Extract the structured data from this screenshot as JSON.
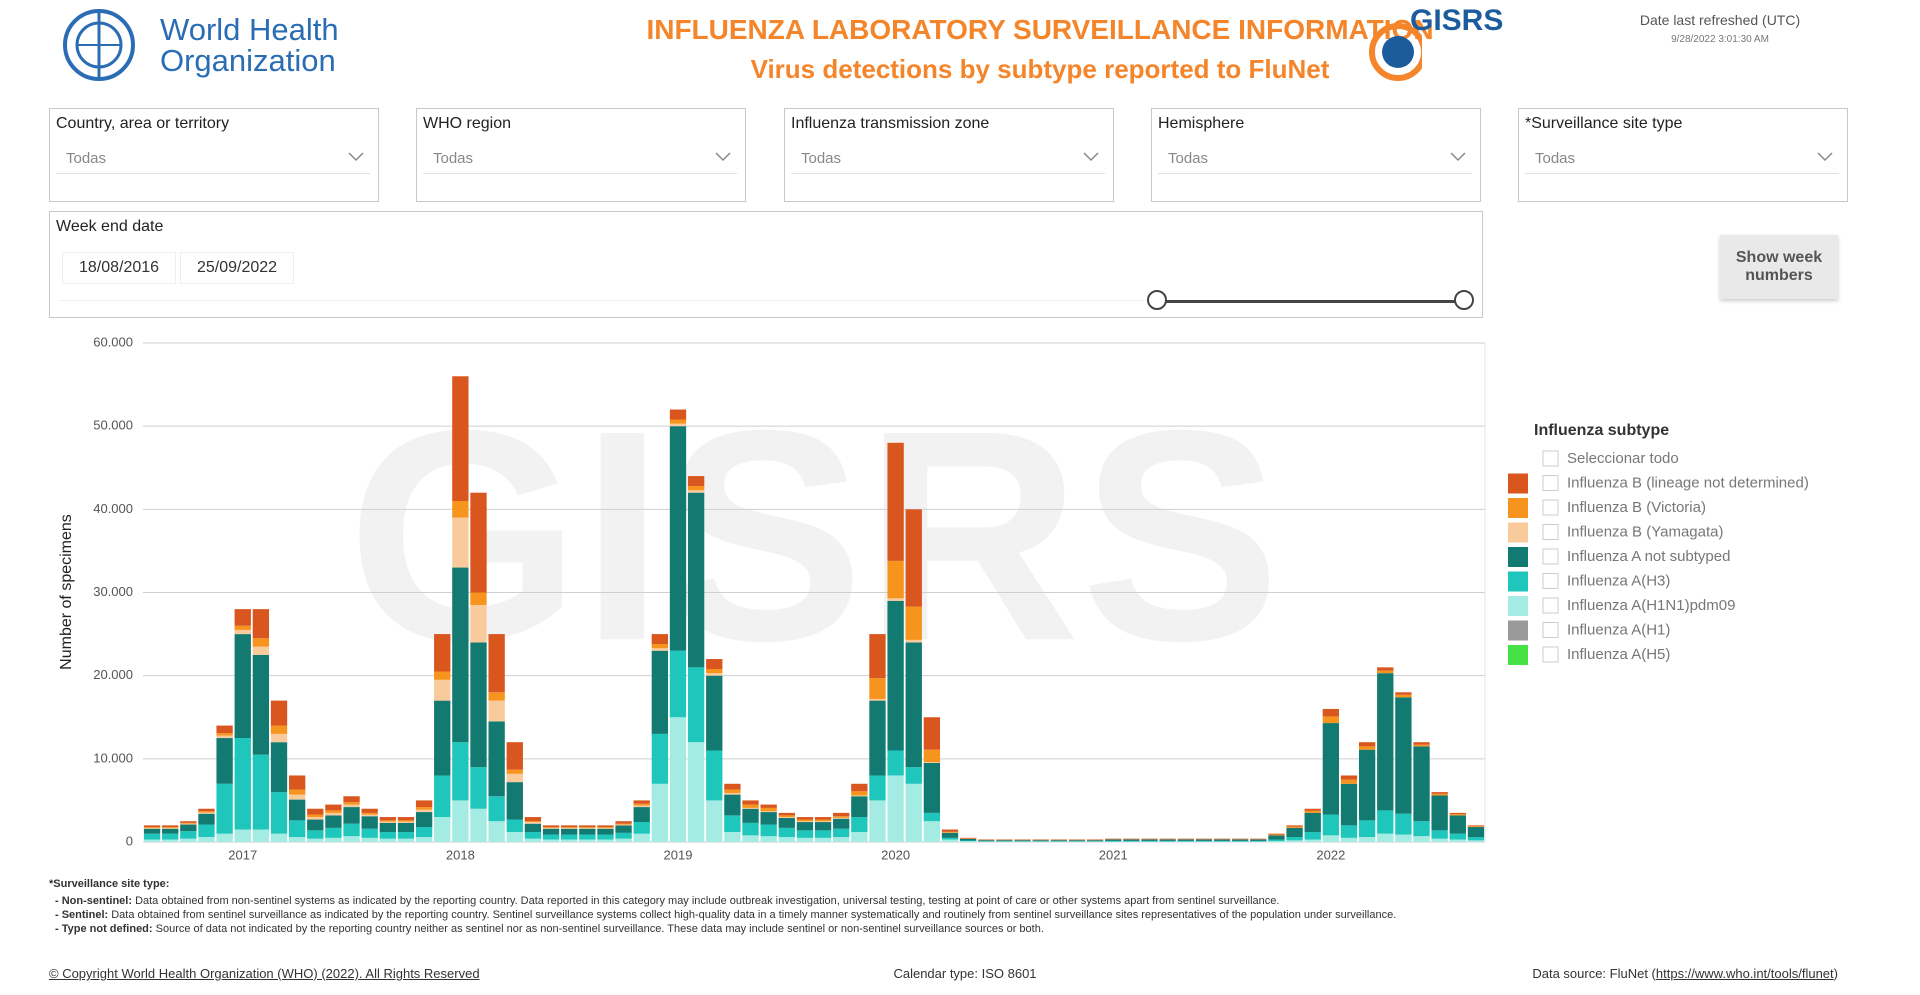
{
  "header": {
    "org_line1": "World Health",
    "org_line2": "Organization",
    "title": "INFLUENZA LABORATORY SURVEILLANCE INFORMATION",
    "subtitle": "Virus detections by subtype reported to FluNet",
    "gisrs": "GISRS",
    "refreshed_label": "Date last refreshed (UTC)",
    "refreshed_value": "9/28/2022 3:01:30 AM"
  },
  "filters": [
    {
      "label": "Country, area or territory",
      "value": "Todas"
    },
    {
      "label": "WHO region",
      "value": "Todas"
    },
    {
      "label": "Influenza transmission zone",
      "value": "Todas"
    },
    {
      "label": "Hemisphere",
      "value": "Todas"
    },
    {
      "label": "*Surveillance site type",
      "value": "Todas"
    }
  ],
  "week_filter": {
    "label": "Week end date",
    "start": "18/08/2016",
    "end": "25/09/2022"
  },
  "button": "Show week numbers",
  "chart_data": {
    "type": "stacked_bar",
    "watermark": "GISRS",
    "ylabel": "Number of specimens",
    "legend_title": "Influenza subtype",
    "select_all": "Seleccionar todo",
    "categories": [
      null,
      null,
      null,
      null,
      null,
      "2017",
      null,
      null,
      null,
      null,
      null,
      null,
      null,
      null,
      null,
      null,
      null,
      "2018",
      null,
      null,
      null,
      null,
      null,
      null,
      null,
      null,
      null,
      null,
      null,
      "2019",
      null,
      null,
      null,
      null,
      null,
      null,
      null,
      null,
      null,
      null,
      null,
      "2020",
      null,
      null,
      null,
      null,
      null,
      null,
      null,
      null,
      null,
      null,
      null,
      "2021",
      null,
      null,
      null,
      null,
      null,
      null,
      null,
      null,
      null,
      null,
      null,
      "2022",
      null,
      null,
      null,
      null,
      null,
      null,
      null,
      null
    ],
    "ylim": [
      0,
      60000
    ],
    "yticks": [
      0,
      {
        "value": 10000,
        "label": "10.000"
      },
      {
        "value": 20000,
        "label": "20.000"
      },
      {
        "value": 30000,
        "label": "30.000"
      },
      {
        "value": 40000,
        "label": "40.000"
      },
      {
        "value": 50000,
        "label": "50.000"
      },
      {
        "value": 60000,
        "label": "60.000"
      }
    ],
    "grid": true,
    "series": [
      {
        "name": "Influenza A(H1N1)pdm09",
        "color": "#a3ebe3",
        "values": [
          300,
          300,
          400,
          600,
          1000,
          1500,
          1500,
          1000,
          600,
          400,
          500,
          700,
          500,
          400,
          400,
          600,
          3000,
          5000,
          4000,
          2500,
          1200,
          400,
          300,
          300,
          300,
          300,
          400,
          1000,
          7000,
          15000,
          12000,
          5000,
          1200,
          800,
          700,
          600,
          500,
          500,
          600,
          1200,
          5000,
          8000,
          7000,
          2500,
          300,
          100,
          50,
          50,
          50,
          50,
          50,
          50,
          50,
          60,
          60,
          60,
          60,
          60,
          60,
          60,
          60,
          60,
          100,
          200,
          300,
          800,
          500,
          600,
          1000,
          900,
          700,
          400,
          300,
          200
        ]
      },
      {
        "name": "Influenza A(H3)",
        "color": "#1fc6bb",
        "values": [
          700,
          700,
          900,
          1500,
          6000,
          11000,
          9000,
          5000,
          2000,
          1000,
          1200,
          1500,
          1100,
          800,
          800,
          1200,
          5000,
          7000,
          5000,
          3000,
          1500,
          800,
          600,
          600,
          600,
          600,
          700,
          1400,
          6000,
          8000,
          9000,
          6000,
          2000,
          1500,
          1400,
          1100,
          900,
          900,
          1000,
          1800,
          3000,
          3000,
          2000,
          1000,
          200,
          80,
          50,
          50,
          50,
          50,
          50,
          50,
          50,
          70,
          70,
          70,
          70,
          70,
          70,
          70,
          70,
          70,
          200,
          400,
          900,
          2500,
          1500,
          2000,
          2800,
          2500,
          1800,
          1000,
          700,
          400
        ]
      },
      {
        "name": "Influenza A not subtyped",
        "color": "#137a72",
        "values": [
          600,
          600,
          800,
          1300,
          5500,
          12500,
          12000,
          6000,
          2500,
          1300,
          1500,
          2000,
          1500,
          1100,
          1100,
          1800,
          9000,
          21000,
          15000,
          9000,
          4500,
          1000,
          700,
          700,
          700,
          700,
          900,
          1800,
          10000,
          27000,
          21000,
          9000,
          2500,
          1700,
          1500,
          1200,
          1000,
          1000,
          1200,
          2500,
          9000,
          18000,
          15000,
          6000,
          600,
          200,
          120,
          120,
          120,
          120,
          120,
          120,
          120,
          170,
          170,
          170,
          170,
          170,
          170,
          170,
          170,
          170,
          500,
          1100,
          2300,
          11000,
          5000,
          8500,
          16500,
          14000,
          9000,
          4200,
          2200,
          1200
        ]
      },
      {
        "name": "Influenza B (Yamagata)",
        "color": "#f9cb9c",
        "values": [
          100,
          100,
          100,
          150,
          300,
          500,
          1000,
          1000,
          600,
          300,
          300,
          300,
          200,
          150,
          150,
          300,
          2500,
          6000,
          4500,
          2500,
          1000,
          200,
          100,
          100,
          100,
          100,
          100,
          200,
          300,
          300,
          300,
          300,
          200,
          100,
          100,
          100,
          100,
          100,
          100,
          100,
          200,
          300,
          300,
          100,
          20,
          10,
          0,
          0,
          0,
          0,
          0,
          0,
          0,
          0,
          0,
          0,
          0,
          0,
          0,
          0,
          0,
          0,
          0,
          0,
          0,
          0,
          0,
          0,
          0,
          0,
          0,
          0,
          0,
          0
        ]
      },
      {
        "name": "Influenza B (Victoria)",
        "color": "#f7941d",
        "values": [
          100,
          100,
          100,
          150,
          300,
          500,
          1000,
          1000,
          600,
          300,
          300,
          300,
          200,
          150,
          150,
          300,
          1000,
          2000,
          1500,
          1000,
          500,
          100,
          100,
          100,
          100,
          100,
          100,
          200,
          500,
          500,
          500,
          500,
          400,
          400,
          400,
          200,
          200,
          200,
          200,
          500,
          2500,
          4500,
          4000,
          1500,
          100,
          30,
          20,
          20,
          20,
          20,
          20,
          20,
          20,
          30,
          30,
          30,
          30,
          30,
          30,
          30,
          30,
          30,
          100,
          150,
          250,
          800,
          500,
          400,
          300,
          300,
          200,
          200,
          150,
          100
        ]
      },
      {
        "name": "Influenza B (lineage not determined)",
        "color": "#d9561f",
        "values": [
          200,
          200,
          200,
          300,
          900,
          2000,
          3500,
          3000,
          1700,
          700,
          700,
          700,
          500,
          400,
          400,
          800,
          4500,
          15000,
          12000,
          7000,
          3300,
          500,
          200,
          200,
          200,
          200,
          300,
          400,
          1200,
          1200,
          1200,
          1200,
          700,
          500,
          400,
          300,
          300,
          300,
          400,
          900,
          5300,
          14200,
          11700,
          3900,
          280,
          80,
          60,
          60,
          60,
          60,
          60,
          60,
          60,
          70,
          70,
          70,
          70,
          70,
          70,
          70,
          70,
          70,
          100,
          150,
          250,
          900,
          500,
          500,
          400,
          300,
          300,
          200,
          150,
          100
        ]
      },
      {
        "name": "Influenza A(H1)",
        "color": "#9a9a9a",
        "values": [
          0,
          0,
          0,
          0,
          0,
          0,
          0,
          0,
          0,
          0,
          0,
          0,
          0,
          0,
          0,
          0,
          0,
          0,
          0,
          0,
          0,
          0,
          0,
          0,
          0,
          0,
          0,
          0,
          0,
          0,
          0,
          0,
          0,
          0,
          0,
          0,
          0,
          0,
          0,
          0,
          0,
          0,
          0,
          0,
          0,
          0,
          0,
          0,
          0,
          0,
          0,
          0,
          0,
          0,
          0,
          0,
          0,
          0,
          0,
          0,
          0,
          0,
          0,
          0,
          0,
          0,
          0,
          0,
          0,
          0,
          0,
          0,
          0,
          0
        ]
      },
      {
        "name": "Influenza A(H5)",
        "color": "#45e245",
        "values": [
          0,
          0,
          0,
          0,
          0,
          0,
          0,
          0,
          0,
          0,
          0,
          0,
          0,
          0,
          0,
          0,
          0,
          0,
          0,
          0,
          0,
          0,
          0,
          0,
          0,
          0,
          0,
          0,
          0,
          0,
          0,
          0,
          0,
          0,
          0,
          0,
          0,
          0,
          0,
          0,
          0,
          0,
          0,
          0,
          0,
          0,
          0,
          0,
          0,
          0,
          0,
          0,
          0,
          0,
          0,
          0,
          0,
          0,
          0,
          0,
          0,
          0,
          0,
          0,
          0,
          0,
          0,
          0,
          0,
          0,
          0,
          0,
          0,
          0
        ]
      }
    ],
    "legend_order": [
      5,
      4,
      3,
      2,
      1,
      0,
      6,
      7
    ]
  },
  "footnotes": {
    "title": "*Surveillance site type:",
    "items": [
      {
        "term": "- Non-sentinel:",
        "text": "Data obtained from non-sentinel systems as indicated by the reporting country. Data reported in this category may include outbreak investigation, universal testing, testing at point of care or other systems apart from sentinel surveillance."
      },
      {
        "term": "- Sentinel:",
        "text": "Data obtained from sentinel surveillance as indicated by the reporting country. Sentinel surveillance systems collect high-quality data in a timely manner systematically and routinely from sentinel surveillance sites representatives of the population under surveillance."
      },
      {
        "term": "- Type not defined:",
        "text": "Source of data not indicated by the reporting country neither as sentinel nor as non-sentinel surveillance. These data may include sentinel or non-sentinel surveillance sources or both."
      }
    ]
  },
  "footer": {
    "copyright": "© Copyright World Health Organization (WHO) (2022). All Rights Reserved",
    "calendar": "Calendar type: ISO 8601",
    "source_label": "Data source: FluNet (",
    "source_link": "https://www.who.int/tools/flunet",
    "source_end": ")"
  }
}
